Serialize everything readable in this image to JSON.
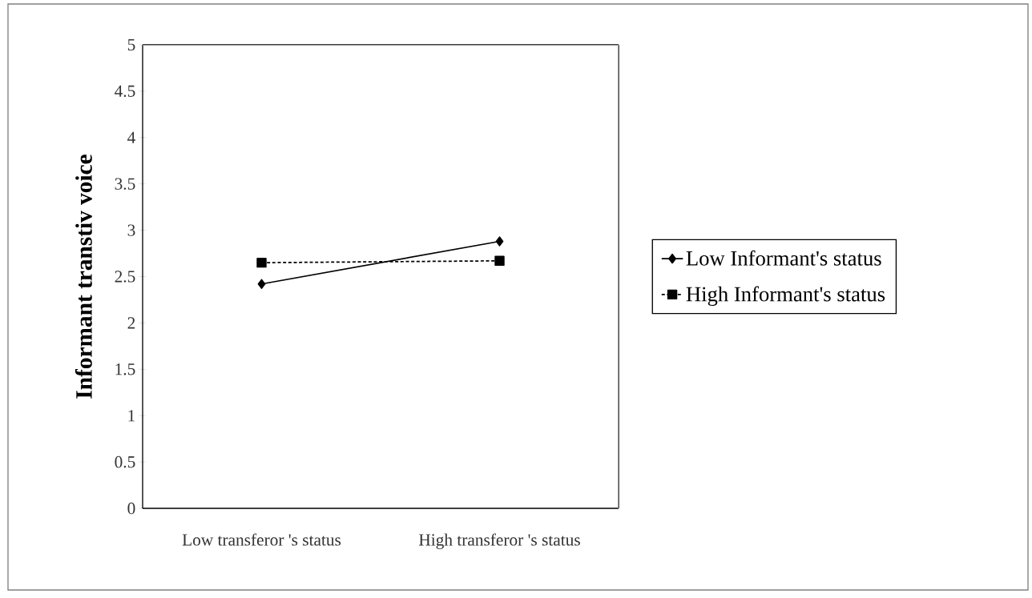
{
  "chart_data": {
    "type": "line",
    "ylabel": "Informant transtiv voice",
    "categories": [
      "Low transferor 's status",
      "High transferor 's status"
    ],
    "series": [
      {
        "name": "Low Informant's status",
        "color": "#000000",
        "values": [
          2.42,
          2.88
        ],
        "marker": "diamond",
        "line_style": "solid"
      },
      {
        "name": "High Informant's status",
        "color": "#000000",
        "values": [
          2.65,
          2.67
        ],
        "marker": "square",
        "line_style": "dotted"
      }
    ],
    "ylim": [
      0,
      5
    ],
    "yticks": [
      0,
      0.5,
      1,
      1.5,
      2,
      2.5,
      3,
      3.5,
      4,
      4.5,
      5
    ],
    "legend": "right",
    "grid": false
  }
}
